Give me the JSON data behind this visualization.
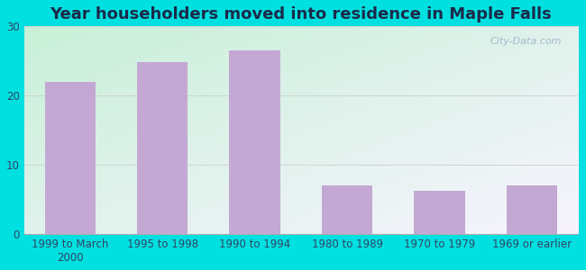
{
  "title": "Year householders moved into residence in Maple Falls",
  "categories": [
    "1999 to March\n2000",
    "1995 to 1998",
    "1990 to 1994",
    "1980 to 1989",
    "1970 to 1979",
    "1969 or earlier"
  ],
  "values": [
    22.0,
    24.8,
    26.5,
    7.0,
    6.3,
    7.0
  ],
  "bar_color": "#c4a8d4",
  "ylim": [
    0,
    30
  ],
  "yticks": [
    0,
    10,
    20,
    30
  ],
  "background_outer": "#00e0e0",
  "grad_color_bottom_left": "#c8f0d8",
  "grad_color_top_right": "#f8f4ff",
  "title_fontsize": 13,
  "title_color": "#1a2a4a",
  "tick_fontsize": 8.5,
  "tick_color": "#334466",
  "watermark": "City-Data.com",
  "grid_color": "#cccccc"
}
